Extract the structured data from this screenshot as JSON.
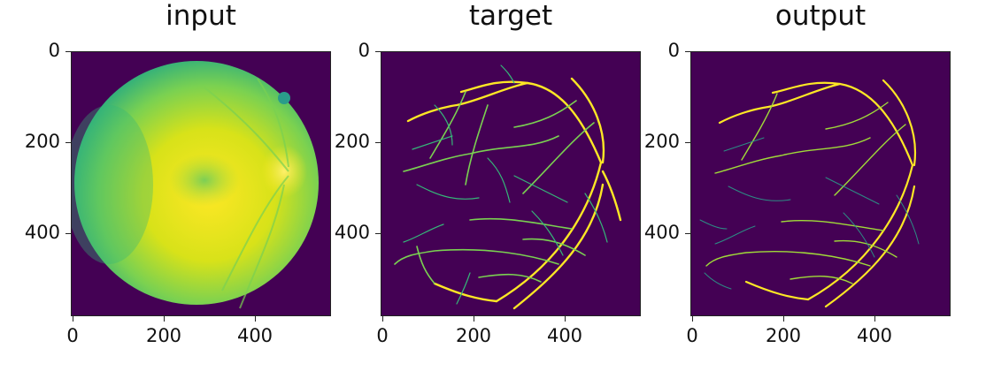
{
  "panels": [
    {
      "title": "input",
      "yticks": [
        "0",
        "200",
        "400"
      ],
      "xticks": [
        "0",
        "200",
        "400"
      ]
    },
    {
      "title": "target",
      "yticks": [
        "0",
        "200",
        "400"
      ],
      "xticks": [
        "0",
        "200",
        "400"
      ]
    },
    {
      "title": "output",
      "yticks": [
        "0",
        "200",
        "400"
      ],
      "xticks": [
        "0",
        "200",
        "400"
      ]
    }
  ],
  "colors": {
    "background_dark": "#440154",
    "vessel_bright": "#fde725",
    "vessel_mid": "#35b779",
    "fundus_teal": "#2a9c8a"
  }
}
